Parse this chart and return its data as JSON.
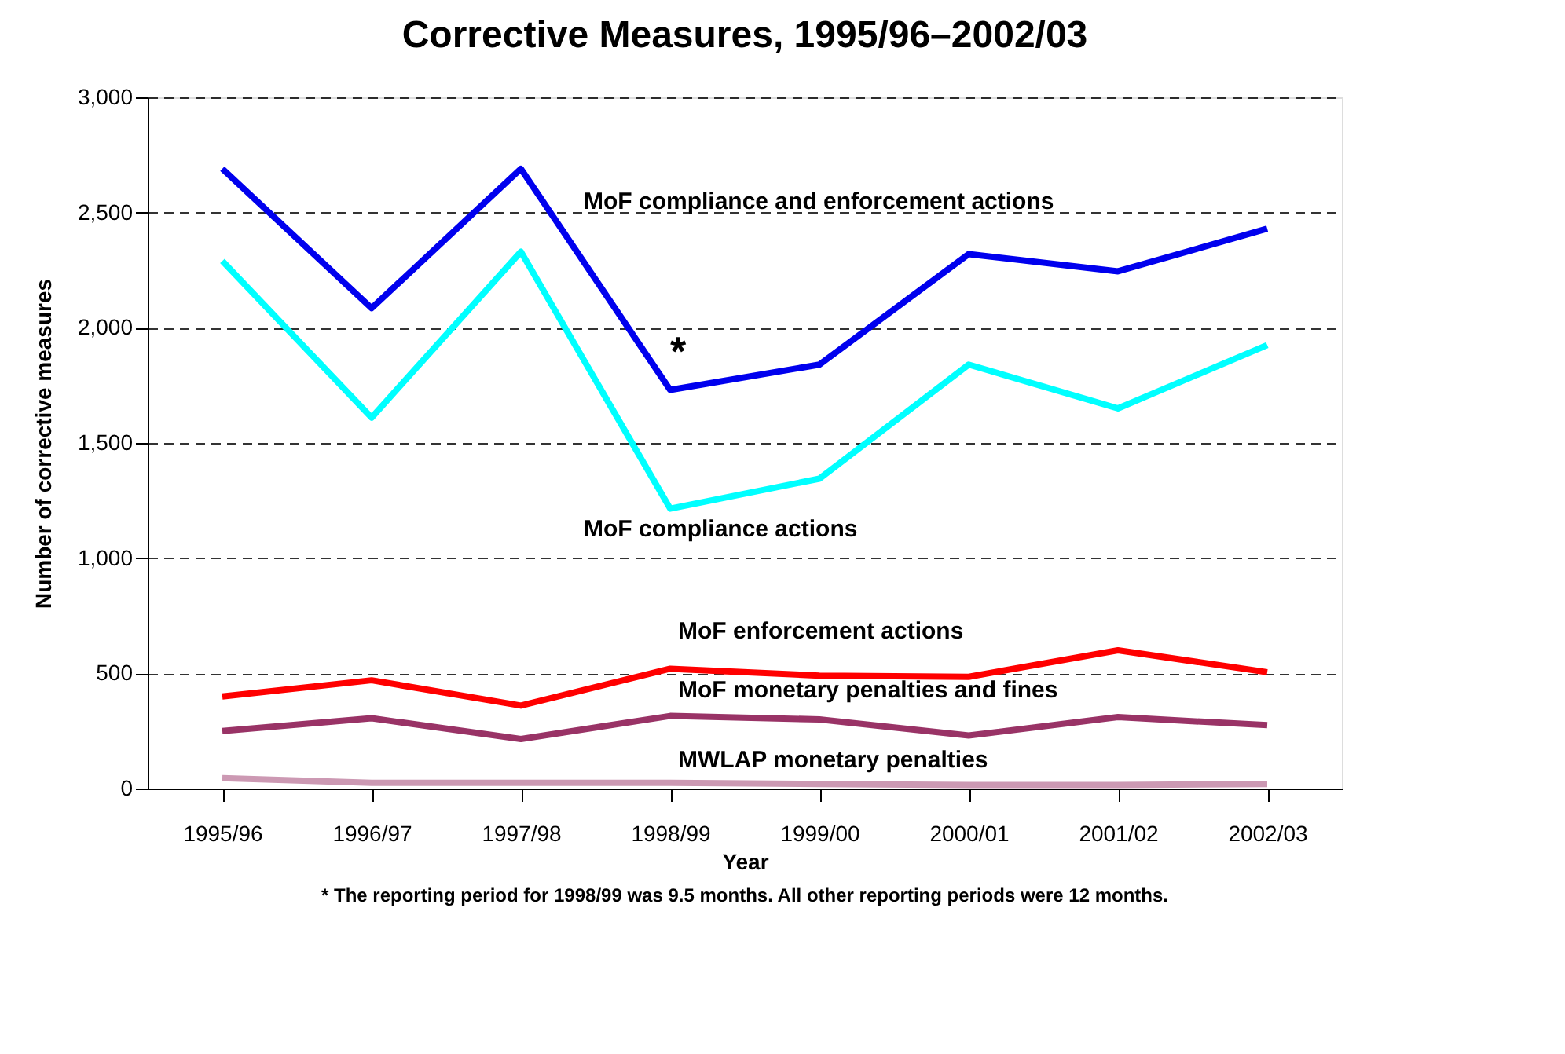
{
  "chart_data": {
    "type": "line",
    "title": "Corrective Measures, 1995/96–2002/03",
    "xlabel": "Year",
    "ylabel": "Number of corrective measures",
    "categories": [
      "1995/96",
      "1996/97",
      "1997/98",
      "1998/99",
      "1999/00",
      "2000/01",
      "2001/02",
      "2002/03"
    ],
    "series": [
      {
        "name": "MoF compliance and enforcement  actions",
        "color": "#0000ee",
        "values": [
          2690,
          2085,
          2690,
          1730,
          1840,
          2320,
          2245,
          2430
        ]
      },
      {
        "name": "MoF compliance actions",
        "color": "#00ffff",
        "values": [
          2290,
          1610,
          2330,
          1215,
          1345,
          1840,
          1650,
          1925
        ]
      },
      {
        "name": "MoF enforcement actions",
        "color": "#ff0000",
        "values": [
          400,
          470,
          360,
          520,
          490,
          485,
          600,
          505
        ]
      },
      {
        "name": "MoF monetary penalties and fines",
        "color": "#993366",
        "values": [
          250,
          305,
          215,
          315,
          300,
          230,
          310,
          275
        ]
      },
      {
        "name": "MWLAP monetary penalties",
        "color": "#cc99b3",
        "values": [
          45,
          25,
          25,
          25,
          20,
          15,
          15,
          20
        ]
      }
    ],
    "ylim": [
      0,
      3000
    ],
    "yticks": [
      {
        "value": 0,
        "label": "0"
      },
      {
        "value": 500,
        "label": "500"
      },
      {
        "value": 1000,
        "label": "1,000"
      },
      {
        "value": 1500,
        "label": "1,500"
      },
      {
        "value": 2000,
        "label": "2,000"
      },
      {
        "value": 2500,
        "label": "2,500"
      },
      {
        "value": 3000,
        "label": "3,000"
      }
    ],
    "grid": "y",
    "marker": "none",
    "line_style": "solid",
    "annotations": [
      {
        "text": "*",
        "x": "1998/99",
        "y": 1730
      },
      "* The reporting period for 1998/99 was 9.5 months. All other reporting periods were 12 months."
    ]
  }
}
